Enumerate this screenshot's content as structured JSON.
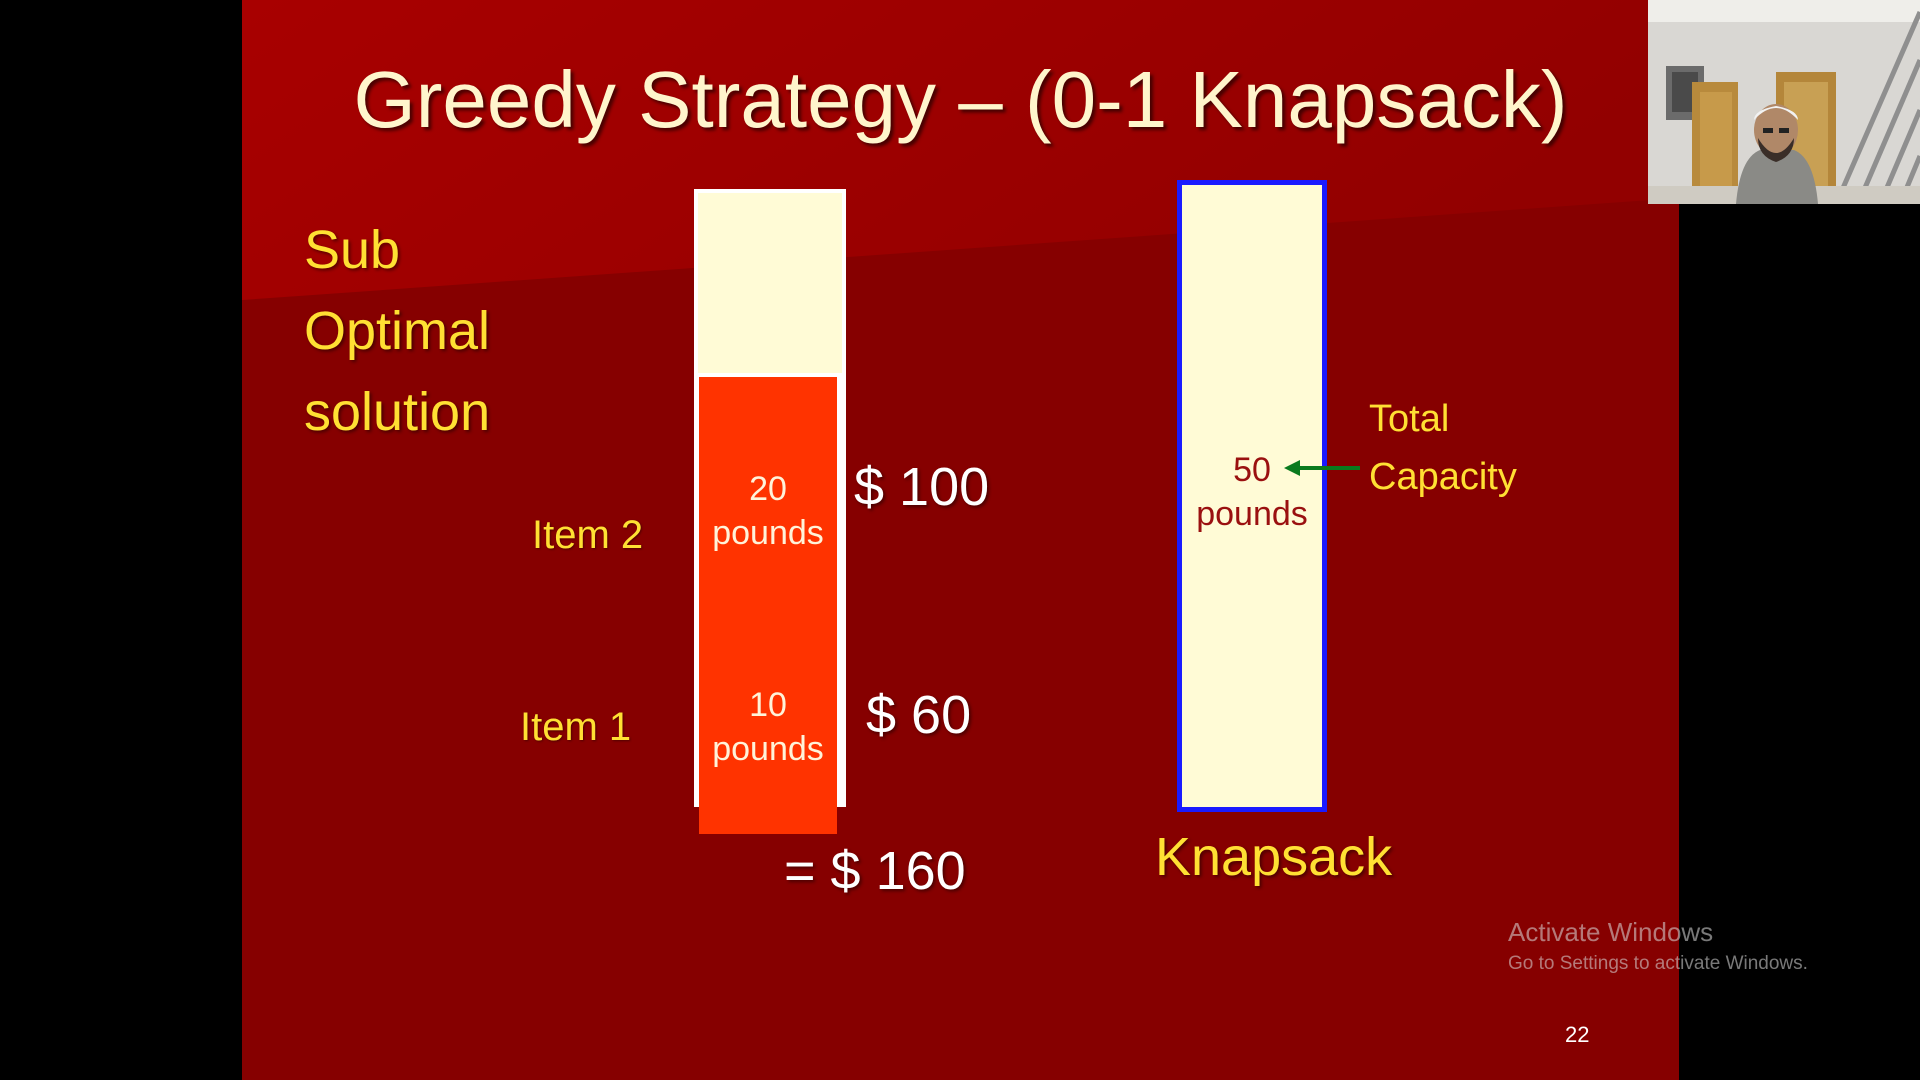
{
  "slide": {
    "title": "Greedy Strategy – (0-1 Knapsack)",
    "heading_lines": [
      "Sub",
      "Optimal",
      "solution"
    ],
    "items": [
      {
        "label": "Item 2",
        "weight": "20",
        "unit": "pounds",
        "price": "$ 100"
      },
      {
        "label": "Item 1",
        "weight": "10",
        "unit": "pounds",
        "price": "$ 60"
      }
    ],
    "total": "= $ 160",
    "knapsack": {
      "capacity": "50",
      "unit": "pounds",
      "annotation_line1": "Total",
      "annotation_line2": "Capacity",
      "label": "Knapsack"
    },
    "page_number": "22"
  },
  "watermark": {
    "title": "Activate Windows",
    "subtitle": "Go to Settings to activate Windows."
  },
  "colors": {
    "slide_background": "#8a0000",
    "title_text": "#fff5cc",
    "accent_yellow": "#ffe033",
    "item_block": "#ff3300",
    "container_fill": "#fffbd6",
    "knapsack_border": "#1a1aff",
    "arrow": "#0a7a1e"
  },
  "icons": {
    "capacity_arrow": "arrow-left-icon"
  }
}
